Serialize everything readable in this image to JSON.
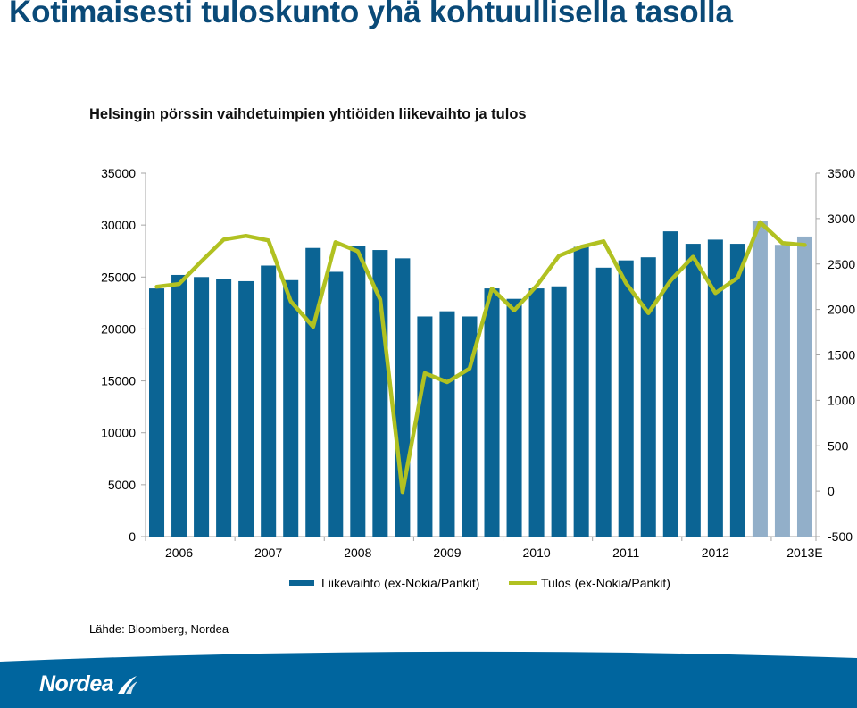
{
  "header": {
    "title": "Kotimaisesti tuloskunto yhä kohtuullisella tasolla",
    "subtitle": "Helsingin pörssin vaihdetuimpien yhtiöiden liikevaihto ja tulos"
  },
  "source": "Lähde: Bloomberg, Nordea",
  "brand": {
    "logo_text": "Nordea",
    "color": "#0a4a78"
  },
  "colors": {
    "bar_actual": "#0b6494",
    "bar_estimate": "#92afc9",
    "line": "#b1c121",
    "footer": "#00659e"
  },
  "chart_data": {
    "type": "bar",
    "title": "Helsingin pörssin vaihdetuimpien yhtiöiden liikevaihto ja tulos",
    "x_tick_labels": [
      "2006",
      "2007",
      "2008",
      "2009",
      "2010",
      "2011",
      "2012",
      "2013E"
    ],
    "left_axis": {
      "ticks": [
        "0",
        "5000",
        "10000",
        "15000",
        "20000",
        "25000",
        "30000",
        "35000"
      ],
      "ylim": [
        0,
        35000
      ]
    },
    "right_axis": {
      "ticks": [
        "-500",
        "0",
        "500",
        "1000",
        "1500",
        "2000",
        "2500",
        "3000",
        "3500"
      ],
      "ylim": [
        -500,
        3500
      ]
    },
    "grid": false,
    "legend_position": "bottom",
    "series": [
      {
        "name": "Liikevaihto (ex-Nokia/Pankit)",
        "type": "bar",
        "axis": "left",
        "values": [
          23900,
          25200,
          25000,
          24800,
          24600,
          26100,
          24700,
          27800,
          25500,
          28000,
          27600,
          26800,
          21200,
          21700,
          21200,
          23900,
          22900,
          23900,
          24100,
          27900,
          25900,
          26600,
          26900,
          29400,
          28200,
          28600,
          28200,
          30400,
          28100,
          28900
        ],
        "estimate_from_index": 27
      },
      {
        "name": "Tulos (ex-Nokia/Pankit)",
        "type": "line",
        "axis": "right",
        "values": [
          2250,
          2280,
          2530,
          2770,
          2810,
          2760,
          2090,
          1810,
          2740,
          2640,
          2110,
          -10,
          1300,
          1200,
          1350,
          2230,
          1990,
          2260,
          2590,
          2690,
          2750,
          2290,
          1960,
          2320,
          2580,
          2180,
          2350,
          2960,
          2730,
          2710
        ]
      }
    ]
  }
}
